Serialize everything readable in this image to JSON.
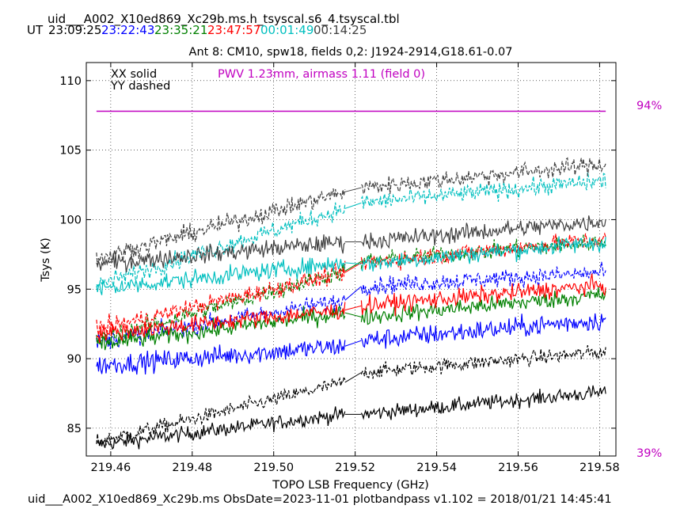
{
  "header": {
    "filename": "uid___A002_X10ed869_Xc29b.ms.h_tsyscal.s6_4.tsyscal.tbl",
    "ut_label": "UT",
    "times": [
      {
        "text": "23:09:25",
        "color": "#000000"
      },
      {
        "text": "23:22:43",
        "color": "#0000ff"
      },
      {
        "text": "23:35:21",
        "color": "#008000"
      },
      {
        "text": "23:47:57",
        "color": "#ff0000"
      },
      {
        "text": "00:01:49",
        "color": "#00bfbf"
      },
      {
        "text": "00:14:25",
        "color": "#404040"
      }
    ]
  },
  "footer": "uid___A002_X10ed869_Xc29b.ms  ObsDate=2023-11-01   plotbandpass v1.102 = 2018/01/21 14:45:41",
  "chart_data": {
    "type": "line",
    "title": "Ant 8: CM10,  spw18,  fields 0,2: J1924-2914,G18.61-0.07",
    "xlabel": "TOPO LSB Frequency (GHz)",
    "ylabel": "Tsys (K)",
    "xlim": [
      219.454,
      219.584
    ],
    "ylim": [
      83.0,
      111.3
    ],
    "xticks": [
      219.46,
      219.48,
      219.5,
      219.52,
      219.54,
      219.56,
      219.58
    ],
    "xtick_labels": [
      "219.46",
      "219.48",
      "219.50",
      "219.52",
      "219.54",
      "219.56",
      "219.58"
    ],
    "yticks": [
      85,
      90,
      95,
      100,
      105,
      110
    ],
    "ytick_labels": [
      "85",
      "90",
      "95",
      "100",
      "105",
      "110"
    ],
    "grid": true,
    "legend_lines": [
      "XX solid",
      "YY dashed"
    ],
    "pwv_annotation": "PWV 1.23mm, airmass 1.11 (field 0)",
    "pwv_color": "#c000c0",
    "right_labels": [
      "94%",
      "39%"
    ],
    "gap": [
      219.5175,
      219.5215
    ],
    "x_range": [
      219.4565,
      219.5815
    ],
    "atm_transmission_line": 107.8,
    "series": [
      {
        "pol": "XX",
        "color": "#000000",
        "start": 83.8,
        "gap_start": 86.0,
        "gap_end": 86.0,
        "end": 87.6,
        "noise": 0.5
      },
      {
        "pol": "YY",
        "color": "#000000",
        "start": 84.0,
        "gap_start": 88.3,
        "gap_end": 89.0,
        "end": 90.5,
        "noise": 0.5
      },
      {
        "pol": "XX",
        "color": "#0000ff",
        "start": 89.5,
        "gap_start": 90.9,
        "gap_end": 91.3,
        "end": 92.8,
        "noise": 0.7
      },
      {
        "pol": "YY",
        "color": "#0000ff",
        "start": 91.2,
        "gap_start": 94.2,
        "gap_end": 95.2,
        "end": 96.2,
        "noise": 0.6
      },
      {
        "pol": "XX",
        "color": "#008000",
        "start": 91.0,
        "gap_start": 93.3,
        "gap_end": 93.0,
        "end": 94.6,
        "noise": 0.6
      },
      {
        "pol": "YY",
        "color": "#008000",
        "start": 91.3,
        "gap_start": 96.3,
        "gap_end": 97.0,
        "end": 98.4,
        "noise": 0.6
      },
      {
        "pol": "XX",
        "color": "#ff0000",
        "start": 91.8,
        "gap_start": 93.5,
        "gap_end": 93.8,
        "end": 95.3,
        "noise": 0.6
      },
      {
        "pol": "YY",
        "color": "#ff0000",
        "start": 92.1,
        "gap_start": 96.2,
        "gap_end": 96.9,
        "end": 98.6,
        "noise": 0.6
      },
      {
        "pol": "XX",
        "color": "#00bfbf",
        "start": 95.0,
        "gap_start": 96.9,
        "gap_end": 96.8,
        "end": 98.4,
        "noise": 0.6
      },
      {
        "pol": "YY",
        "color": "#00bfbf",
        "start": 95.3,
        "gap_start": 100.8,
        "gap_end": 101.2,
        "end": 102.8,
        "noise": 0.6
      },
      {
        "pol": "XX",
        "color": "#404040",
        "start": 96.8,
        "gap_start": 98.4,
        "gap_end": 98.4,
        "end": 99.9,
        "noise": 0.6
      },
      {
        "pol": "YY",
        "color": "#404040",
        "start": 97.2,
        "gap_start": 102.0,
        "gap_end": 102.3,
        "end": 104.0,
        "noise": 0.6
      }
    ]
  }
}
